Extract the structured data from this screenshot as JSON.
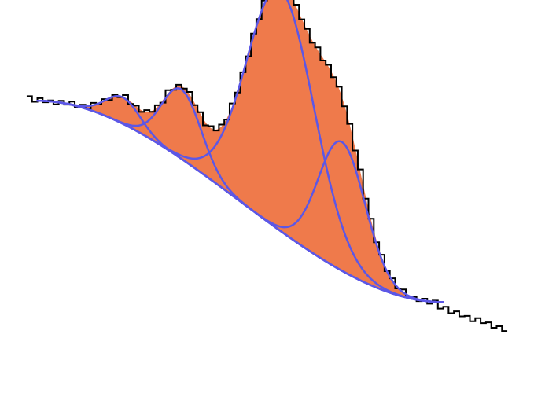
{
  "chart_data": {
    "type": "area",
    "xlim": [
      0,
      100
    ],
    "ylim": [
      0,
      100
    ],
    "axes_visible": false,
    "grid": false,
    "colors": {
      "fill": "#ef7a4b",
      "component_line": "#5c57e6",
      "histogram_line": "#000000"
    },
    "baseline": {
      "x_start": 7,
      "x_end": 83,
      "y_start": 79,
      "y_end": 18
    },
    "components": [
      {
        "center": 23,
        "amplitude": 8,
        "sigma": 3.2
      },
      {
        "center": 34,
        "amplitude": 21,
        "sigma": 3.7
      },
      {
        "center": 52.5,
        "amplitude": 73,
        "sigma": 6.3
      },
      {
        "center": 64,
        "amplitude": 39,
        "sigma": 4.4
      }
    ],
    "histogram": {
      "x_start": 5,
      "x_end": 95,
      "bins": 90,
      "noise": [
        0.5,
        -0.6,
        0.8,
        -0.4,
        0.3,
        -0.7,
        0.6,
        -0.3,
        0.9,
        -0.5,
        0.4,
        -0.8,
        0.7,
        -0.2,
        0.5,
        -0.6,
        0.3,
        -0.4,
        0.8,
        -0.7,
        0.2,
        -0.5,
        0.6,
        -0.3,
        0.4,
        -0.8,
        0.9,
        -0.6,
        0.3,
        -0.2,
        0.7,
        -0.5,
        0.4,
        -0.9,
        0.6,
        -0.3,
        0.5,
        -0.4,
        0.8,
        -0.6,
        0.2,
        -0.7,
        0.5,
        -0.3,
        0.9,
        -0.4,
        0.6,
        -0.8,
        0.3,
        -0.5,
        0.7,
        -0.2,
        0.4,
        -0.6,
        0.8,
        -0.7,
        0.5,
        -0.3,
        0.6,
        -0.4,
        0.3,
        -0.8,
        0.9,
        -0.5,
        0.4,
        -0.6,
        0.7,
        -0.3,
        0.5,
        -0.4,
        0.8,
        -0.6,
        0.3,
        -0.5,
        0.6,
        -0.7,
        0.4,
        -0.2,
        0.9,
        -0.5,
        0.6,
        -0.4,
        0.3,
        -0.8,
        0.7,
        -0.3,
        0.5,
        -0.6,
        0.4,
        -0.5
      ],
      "tail": {
        "start": 82,
        "end": 95,
        "from": 16.5,
        "to": 9.5
      }
    }
  }
}
